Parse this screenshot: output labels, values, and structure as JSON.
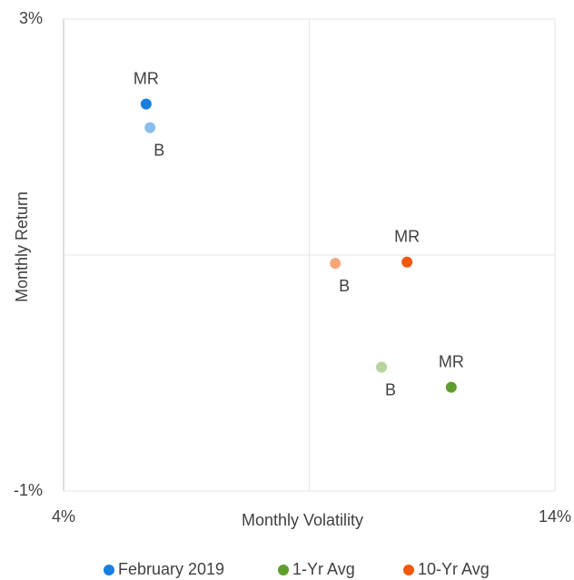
{
  "chart_data": {
    "type": "scatter",
    "xlabel": "Monthly Volatility",
    "ylabel": "Monthly Return",
    "xlim": [
      4,
      14
    ],
    "ylim": [
      -1,
      3
    ],
    "xticks": [
      {
        "value": 4,
        "label": "4%"
      },
      {
        "value": 14,
        "label": "14%"
      }
    ],
    "yticks": [
      {
        "value": -1,
        "label": "-1%"
      },
      {
        "value": 3,
        "label": "3%"
      }
    ],
    "xcross": 9,
    "ycross": 1,
    "legend": "bottom",
    "series": [
      {
        "name": "February 2019",
        "color": "#1a7fdc",
        "colors": [
          "#1a7fdc",
          "#8dbdea"
        ],
        "point_labels": [
          "MR",
          "B"
        ],
        "x": [
          5.68,
          5.76
        ],
        "values": [
          2.28,
          2.08
        ]
      },
      {
        "name": "1-Yr Avg",
        "color": "#5f9e2c",
        "colors": [
          "#5f9e2c",
          "#b6d49e"
        ],
        "point_labels": [
          "MR",
          "B"
        ],
        "x": [
          11.89,
          10.47
        ],
        "values": [
          -0.12,
          0.05
        ]
      },
      {
        "name": "10-Yr Avg",
        "color": "#f0590c",
        "colors": [
          "#f0590c",
          "#f7a67c"
        ],
        "point_labels": [
          "MR",
          "B"
        ],
        "x": [
          10.99,
          9.53
        ],
        "values": [
          0.94,
          0.93
        ]
      }
    ]
  }
}
